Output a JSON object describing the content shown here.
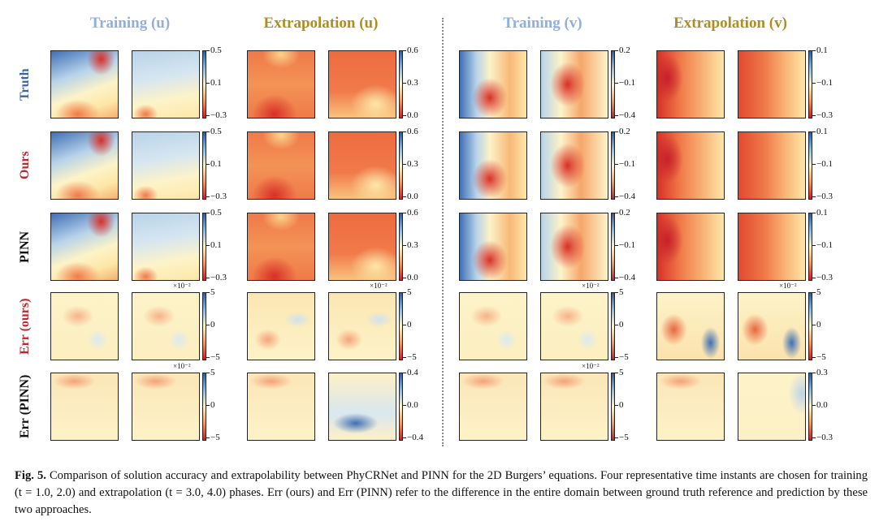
{
  "headers": [
    {
      "text": "Training (u)",
      "color": "#8fb0de"
    },
    {
      "text": "Extrapolation (u)",
      "color": "#b38d1c"
    },
    {
      "text": "Training (v)",
      "color": "#8fb0de"
    },
    {
      "text": "Extrapolation (v)",
      "color": "#b38d1c"
    }
  ],
  "rows": [
    {
      "label": "Truth",
      "color": "#3b63a8"
    },
    {
      "label": "Ours",
      "color": "#c0262c"
    },
    {
      "label": "PINN",
      "color": "#111111"
    },
    {
      "label": "Err (ours)",
      "color": "#c0262c"
    },
    {
      "label": "Err (PINN)",
      "color": "#111111"
    }
  ],
  "colorbars": [
    [
      {
        "ticks": [
          "0.5",
          "0.1",
          "−0.3"
        ]
      },
      {
        "ticks": [
          "0.6",
          "0.3",
          "0.0"
        ]
      },
      {
        "ticks": [
          "0.2",
          "−0.1",
          "−0.4"
        ]
      },
      {
        "ticks": [
          "0.1",
          "−0.1",
          "−0.3"
        ]
      }
    ],
    [
      {
        "ticks": [
          "0.5",
          "0.1",
          "−0.3"
        ]
      },
      {
        "ticks": [
          "0.6",
          "0.3",
          "0.0"
        ]
      },
      {
        "ticks": [
          "0.2",
          "−0.1",
          "−0.4"
        ]
      },
      {
        "ticks": [
          "0.1",
          "−0.1",
          "−0.3"
        ]
      }
    ],
    [
      {
        "ticks": [
          "0.5",
          "0.1",
          "−0.3"
        ]
      },
      {
        "ticks": [
          "0.6",
          "0.3",
          "0.0"
        ]
      },
      {
        "ticks": [
          "0.2",
          "−0.1",
          "−0.4"
        ]
      },
      {
        "ticks": [
          "0.1",
          "−0.1",
          "−0.3"
        ]
      }
    ],
    [
      {
        "ticks": [
          "5",
          "0",
          "−5"
        ],
        "mult": "×10⁻²"
      },
      {
        "ticks": [
          "5",
          "0",
          "−5"
        ],
        "mult": "×10⁻²"
      },
      {
        "ticks": [
          "5",
          "0",
          "−5"
        ],
        "mult": "×10⁻²"
      },
      {
        "ticks": [
          "5",
          "0",
          "−5"
        ],
        "mult": "×10⁻²"
      }
    ],
    [
      {
        "ticks": [
          "5",
          "0",
          "−5"
        ],
        "mult": "×10⁻²"
      },
      {
        "ticks": [
          "0.4",
          "0.0",
          "−0.4"
        ]
      },
      {
        "ticks": [
          "5",
          "0",
          "−5"
        ],
        "mult": "×10⁻²"
      },
      {
        "ticks": [
          "0.3",
          "0.0",
          "−0.3"
        ]
      }
    ]
  ],
  "caption": {
    "label": "Fig. 5.",
    "text": " Comparison of solution accuracy and extrapolability between PhyCRNet and PINN for the 2D Burgers’ equations. Four representative time instants are chosen for training (t = 1.0, 2.0) and extrapolation (t = 3.0, 4.0) phases. Err (ours) and Err (PINN) refer to the difference in the entire domain between ground truth reference and prediction by these two approaches."
  }
}
